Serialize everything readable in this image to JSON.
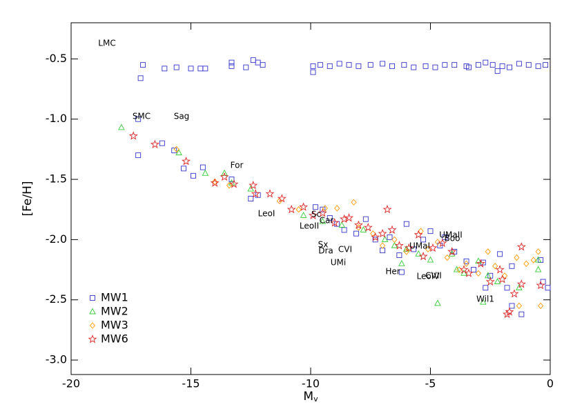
{
  "chart_data": {
    "type": "scatter",
    "x_label": "M",
    "x_label_subscript": "v",
    "y_label": "[Fe/H]",
    "xlim": [
      -20,
      0
    ],
    "ylim": [
      -3.12,
      -0.2
    ],
    "xticks": [
      -20,
      -15,
      -10,
      -5,
      0
    ],
    "yticks": [
      {
        "value": -3,
        "label": "-3.0"
      },
      -2.5,
      {
        "value": -2,
        "label": "-2.0"
      },
      -1.5,
      {
        "value": -1,
        "label": "-1.0"
      },
      -0.5
    ],
    "legend": "lower left",
    "annotations": [
      "LMC",
      "SMC",
      "Sag",
      "For",
      "LeoI",
      "Sc",
      "Car",
      "LeoII",
      "Sx",
      "Dra",
      "CVI",
      "UMi",
      "UMaI",
      "UMaII",
      "Boo",
      "Her",
      "LeoIV",
      "CVII",
      "Wil1"
    ],
    "series": [
      {
        "name": "MW1",
        "color": "#3333cc",
        "marker": "square",
        "x": [
          -17.0,
          -17.1,
          -16.1,
          -15.6,
          -15.0,
          -14.6,
          -14.4,
          -13.3,
          -13.3,
          -12.7,
          -12.4,
          -12.2,
          -12.0,
          -9.9,
          -9.9,
          -9.6,
          -9.2,
          -8.8,
          -8.4,
          -8.0,
          -7.5,
          -7.0,
          -6.6,
          -6.1,
          -5.7,
          -5.2,
          -4.8,
          -4.4,
          -4.0,
          -3.5,
          -3.0,
          -2.7,
          -2.4,
          -2.0,
          -1.7,
          -1.3,
          -0.9,
          -0.5,
          -0.2,
          -2.2,
          -3.4,
          -17.2,
          -17.2,
          -16.2,
          -15.7,
          -15.3,
          -14.9,
          -14.5,
          -13.3,
          -12.5,
          -12.2,
          -9.8,
          -9.5,
          -9.2,
          -8.9,
          -8.6,
          -8.1,
          -7.7,
          -7.3,
          -7.0,
          -6.7,
          -6.3,
          -6.0,
          -5.7,
          -5.3,
          -5.0,
          -4.6,
          -4.4,
          -4.0,
          -3.5,
          -3.2,
          -2.8,
          -2.5,
          -2.1,
          -1.8,
          -1.6,
          -1.2,
          -0.4,
          -0.3,
          -0.1,
          -1.6,
          -2.7,
          -6.2
        ],
        "y": [
          -0.55,
          -0.66,
          -0.58,
          -0.57,
          -0.58,
          -0.58,
          -0.58,
          -0.56,
          -0.53,
          -0.57,
          -0.51,
          -0.53,
          -0.55,
          -0.61,
          -0.56,
          -0.55,
          -0.56,
          -0.54,
          -0.55,
          -0.56,
          -0.55,
          -0.54,
          -0.56,
          -0.55,
          -0.57,
          -0.56,
          -0.57,
          -0.55,
          -0.55,
          -0.56,
          -0.55,
          -0.53,
          -0.55,
          -0.56,
          -0.57,
          -0.54,
          -0.55,
          -0.56,
          -0.55,
          -0.6,
          -0.57,
          -1.0,
          -1.3,
          -1.2,
          -1.26,
          -1.41,
          -1.47,
          -1.4,
          -1.5,
          -1.66,
          -1.63,
          -1.73,
          -1.75,
          -1.82,
          -1.87,
          -1.92,
          -1.95,
          -1.83,
          -2.0,
          -2.09,
          -1.98,
          -2.13,
          -1.87,
          -2.08,
          -2.0,
          -1.93,
          -2.05,
          -1.98,
          -2.1,
          -2.18,
          -2.25,
          -2.19,
          -2.3,
          -2.12,
          -2.4,
          -2.55,
          -2.62,
          -2.17,
          -2.35,
          -2.4,
          -2.22,
          -2.4,
          -2.27
        ]
      },
      {
        "name": "MW2",
        "color": "#33cc33",
        "marker": "triangle",
        "x": [
          -17.9,
          -15.5,
          -14.4,
          -13.6,
          -13.3,
          -12.5,
          -10.3,
          -9.5,
          -8.7,
          -7.8,
          -6.9,
          -6.5,
          -6.0,
          -5.5,
          -5.0,
          -4.7,
          -3.9,
          -3.6,
          -3.0,
          -2.8,
          -2.2,
          -1.3,
          -0.5,
          -0.5,
          -6.2,
          -4.1,
          -2.6
        ],
        "y": [
          -1.07,
          -1.28,
          -1.45,
          -1.45,
          -1.53,
          -1.58,
          -1.8,
          -1.85,
          -1.88,
          -1.92,
          -2.0,
          -2.05,
          -2.08,
          -2.12,
          -2.17,
          -2.53,
          -2.25,
          -2.28,
          -2.18,
          -2.52,
          -2.35,
          -2.4,
          -2.25,
          -2.17,
          -2.2,
          -2.12,
          -2.3
        ]
      },
      {
        "name": "MW3",
        "color": "#ff9900",
        "marker": "diamond",
        "x": [
          -15.6,
          -14.0,
          -13.4,
          -11.3,
          -10.5,
          -9.4,
          -8.9,
          -8.2,
          -8.0,
          -7.4,
          -7.0,
          -6.5,
          -6.0,
          -5.4,
          -5.1,
          -4.7,
          -4.3,
          -3.8,
          -3.5,
          -3.0,
          -2.6,
          -2.3,
          -1.9,
          -1.4,
          -1.0,
          -0.5,
          -0.4,
          -1.3,
          -0.7
        ],
        "y": [
          -1.25,
          -1.52,
          -1.55,
          -1.68,
          -1.75,
          -1.74,
          -1.74,
          -1.69,
          -1.9,
          -1.95,
          -2.05,
          -2.0,
          -2.1,
          -1.93,
          -2.08,
          -2.02,
          -2.15,
          -2.25,
          -2.2,
          -2.28,
          -2.1,
          -2.22,
          -2.3,
          -2.15,
          -2.2,
          -2.1,
          -2.55,
          -2.55,
          -2.17
        ]
      },
      {
        "name": "MW6",
        "color": "#dd2222",
        "marker": "star",
        "x": [
          -17.4,
          -16.5,
          -15.2,
          -14.0,
          -13.6,
          -13.2,
          -12.4,
          -12.3,
          -11.7,
          -11.2,
          -10.8,
          -10.3,
          -9.9,
          -9.5,
          -9.0,
          -8.6,
          -8.4,
          -8.0,
          -7.6,
          -7.3,
          -7.0,
          -6.6,
          -6.3,
          -5.9,
          -5.5,
          -5.3,
          -4.9,
          -4.5,
          -4.1,
          -3.6,
          -3.4,
          -2.9,
          -2.5,
          -2.1,
          -1.8,
          -1.7,
          -1.5,
          -1.2,
          -1.2,
          -0.4,
          -2.0,
          -6.8
        ],
        "y": [
          -1.14,
          -1.21,
          -1.35,
          -1.53,
          -1.48,
          -1.54,
          -1.55,
          -1.62,
          -1.62,
          -1.66,
          -1.75,
          -1.73,
          -1.8,
          -1.78,
          -1.86,
          -1.83,
          -1.82,
          -1.88,
          -1.9,
          -1.98,
          -1.95,
          -1.92,
          -2.05,
          -2.07,
          -1.96,
          -2.14,
          -2.07,
          -2.03,
          -2.1,
          -2.25,
          -2.28,
          -2.2,
          -2.35,
          -2.25,
          -2.62,
          -2.6,
          -2.45,
          -2.06,
          -2.37,
          -2.38,
          -2.33,
          -1.75
        ]
      }
    ]
  }
}
